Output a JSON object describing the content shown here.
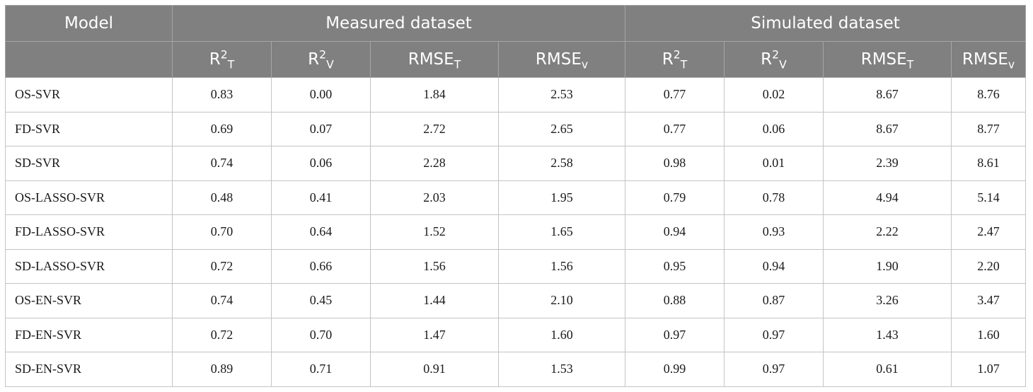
{
  "header": {
    "model": "Model",
    "measured": "Measured dataset",
    "simulated": "Simulated dataset",
    "cols": [
      {
        "base": "R",
        "sup": "2",
        "sub": "T"
      },
      {
        "base": "R",
        "sup": "2",
        "sub": "V"
      },
      {
        "base": "RMSE",
        "sup": "",
        "sub": "T"
      },
      {
        "base": "RMSE",
        "sup": "",
        "sub": "v"
      },
      {
        "base": "R",
        "sup": "2",
        "sub": "T"
      },
      {
        "base": "R",
        "sup": "2",
        "sub": "V"
      },
      {
        "base": "RMSE",
        "sup": "",
        "sub": "T"
      },
      {
        "base": "RMSE",
        "sup": "",
        "sub": "v"
      }
    ]
  },
  "rows": [
    {
      "model": "OS-SVR",
      "values": [
        "0.83",
        "0.00",
        "1.84",
        "2.53",
        "0.77",
        "0.02",
        "8.67",
        "8.76"
      ]
    },
    {
      "model": "FD-SVR",
      "values": [
        "0.69",
        "0.07",
        "2.72",
        "2.65",
        "0.77",
        "0.06",
        "8.67",
        "8.77"
      ]
    },
    {
      "model": "SD-SVR",
      "values": [
        "0.74",
        "0.06",
        "2.28",
        "2.58",
        "0.98",
        "0.01",
        "2.39",
        "8.61"
      ]
    },
    {
      "model": "OS-LASSO-SVR",
      "values": [
        "0.48",
        "0.41",
        "2.03",
        "1.95",
        "0.79",
        "0.78",
        "4.94",
        "5.14"
      ]
    },
    {
      "model": "FD-LASSO-SVR",
      "values": [
        "0.70",
        "0.64",
        "1.52",
        "1.65",
        "0.94",
        "0.93",
        "2.22",
        "2.47"
      ]
    },
    {
      "model": "SD-LASSO-SVR",
      "values": [
        "0.72",
        "0.66",
        "1.56",
        "1.56",
        "0.95",
        "0.94",
        "1.90",
        "2.20"
      ]
    },
    {
      "model": "OS-EN-SVR",
      "values": [
        "0.74",
        "0.45",
        "1.44",
        "2.10",
        "0.88",
        "0.87",
        "3.26",
        "3.47"
      ]
    },
    {
      "model": "FD-EN-SVR",
      "values": [
        "0.72",
        "0.70",
        "1.47",
        "1.60",
        "0.97",
        "0.97",
        "1.43",
        "1.60"
      ]
    },
    {
      "model": "SD-EN-SVR",
      "values": [
        "0.89",
        "0.71",
        "0.91",
        "1.53",
        "0.99",
        "0.97",
        "0.61",
        "1.07"
      ]
    }
  ]
}
